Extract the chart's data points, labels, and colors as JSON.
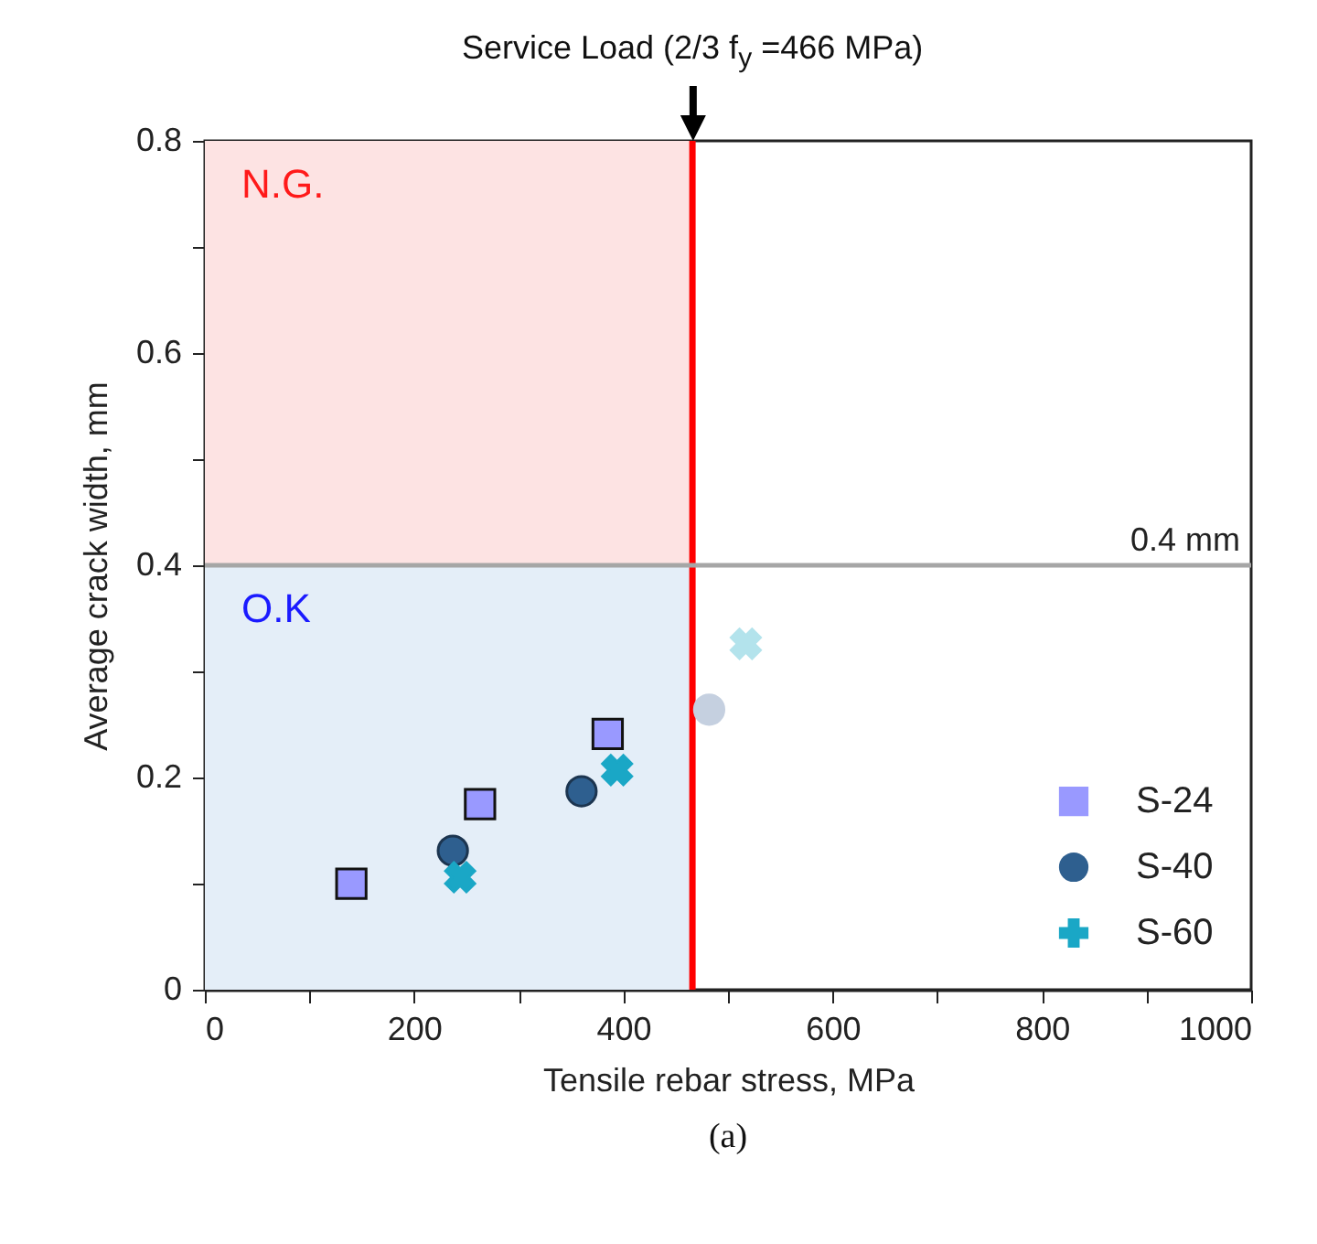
{
  "chart_data": {
    "type": "scatter",
    "xlabel": "Tensile rebar stress, MPa",
    "ylabel": "Average crack width, mm",
    "xlim": [
      0,
      1000
    ],
    "ylim": [
      0,
      0.8
    ],
    "xticks": [
      0,
      {
        "value": 100,
        "label": null
      },
      200,
      {
        "value": 300,
        "label": null
      },
      400,
      {
        "value": 500,
        "label": null
      },
      600,
      {
        "value": 700,
        "label": null
      },
      800,
      {
        "value": 900,
        "label": null
      },
      1000
    ],
    "yticks": [
      0,
      {
        "value": 0.1,
        "label": null
      },
      0.2,
      {
        "value": 0.3,
        "label": null
      },
      0.4,
      {
        "value": 0.5,
        "label": null
      },
      0.6,
      {
        "value": 0.7,
        "label": null
      },
      0.8
    ],
    "grid": false,
    "legend": "bottom right",
    "series": [
      {
        "name": "S-24",
        "color": "#9999ff",
        "marker": "square",
        "x": [
          140,
          263,
          385
        ],
        "values": [
          0.1,
          0.175,
          0.241
        ]
      },
      {
        "name": "S-40",
        "color": "#2e5f8f",
        "marker": "circle",
        "x": [
          237,
          360,
          482
        ],
        "values": [
          0.131,
          0.187,
          0.264
        ],
        "colors": [
          "#2e5f8f",
          "#2e5f8f",
          "#c5d0e0"
        ]
      },
      {
        "name": "S-60",
        "color": "#1aa7c6",
        "marker": "cross",
        "x": [
          244,
          394,
          517
        ],
        "values": [
          0.106,
          0.207,
          0.326
        ],
        "colors": [
          "#1aa7c6",
          "#1aa7c6",
          "#b3e3ec"
        ]
      }
    ],
    "ref_lines": [
      {
        "axis": "x",
        "value": 466,
        "label": "Service Load (2/3 f$_{y}$ =466 MPa)",
        "color": "#ff0000"
      },
      {
        "axis": "y",
        "value": 0.4,
        "label": "0.4 mm",
        "color": "#a6a6a6"
      }
    ],
    "bands": [
      {
        "axis": "y",
        "from": 0.4,
        "to": 0.8,
        "label": "N.G.",
        "color": "#fde3e3"
      },
      {
        "axis": "y",
        "from": 0,
        "to": 0.4,
        "label": "O.K",
        "color": "#e4eef8"
      }
    ],
    "annotations": [
      "(a)"
    ]
  }
}
